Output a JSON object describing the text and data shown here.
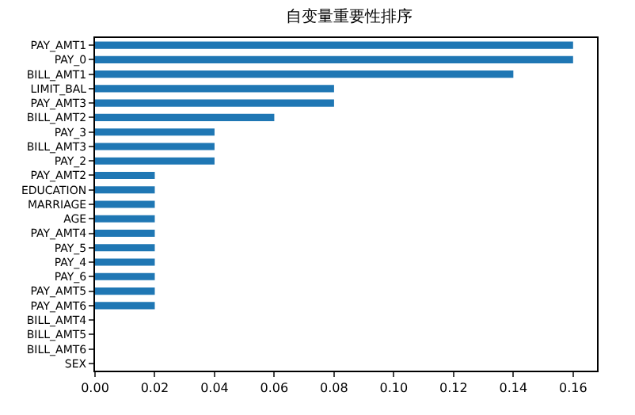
{
  "chart_data": {
    "type": "bar",
    "orientation": "horizontal",
    "title": "自变量重要性排序",
    "categories": [
      "PAY_AMT1",
      "PAY_0",
      "BILL_AMT1",
      "LIMIT_BAL",
      "PAY_AMT3",
      "BILL_AMT2",
      "PAY_3",
      "BILL_AMT3",
      "PAY_2",
      "PAY_AMT2",
      "EDUCATION",
      "MARRIAGE",
      "AGE",
      "PAY_AMT4",
      "PAY_5",
      "PAY_4",
      "PAY_6",
      "PAY_AMT5",
      "PAY_AMT6",
      "BILL_AMT4",
      "BILL_AMT5",
      "BILL_AMT6",
      "SEX"
    ],
    "values": [
      0.16,
      0.16,
      0.14,
      0.08,
      0.08,
      0.06,
      0.04,
      0.04,
      0.04,
      0.02,
      0.02,
      0.02,
      0.02,
      0.02,
      0.02,
      0.02,
      0.02,
      0.02,
      0.02,
      0,
      0,
      0,
      0
    ],
    "color": "#1f77b4",
    "xlim": [
      0,
      0.168
    ],
    "xticks": [
      {
        "value": 0,
        "label": "0.00"
      },
      {
        "value": 0.02,
        "label": "0.02"
      },
      {
        "value": 0.04,
        "label": "0.04"
      },
      {
        "value": 0.06,
        "label": "0.06"
      },
      {
        "value": 0.08,
        "label": "0.08"
      },
      {
        "value": 0.1,
        "label": "0.10"
      },
      {
        "value": 0.12,
        "label": "0.12"
      },
      {
        "value": 0.14,
        "label": "0.14"
      },
      {
        "value": 0.16,
        "label": "0.16"
      }
    ]
  }
}
